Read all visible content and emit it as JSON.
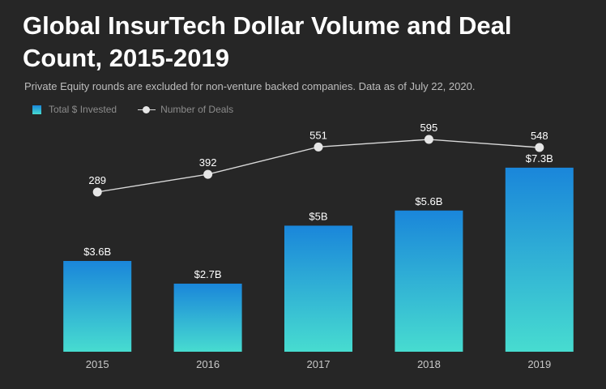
{
  "title": "Global InsurTech Dollar Volume and Deal Count, 2015-2019",
  "subtitle": "Private Equity rounds are excluded for non-venture backed companies. Data as of July 22, 2020.",
  "colors": {
    "background": "#262626",
    "bar_top": "#1a86da",
    "bar_bottom": "#47dcd0",
    "line": "#d9d9d9",
    "marker": "#e6e6e6"
  },
  "chart_data": {
    "type": "bar",
    "categories": [
      "2015",
      "2016",
      "2017",
      "2018",
      "2019"
    ],
    "series": [
      {
        "name": "Total $ Invested",
        "type": "bar",
        "values": [
          3.6,
          2.7,
          5.0,
          5.6,
          7.3
        ],
        "labels": [
          "$3.6B",
          "$2.7B",
          "$5B",
          "$5.6B",
          "$7.3B"
        ]
      },
      {
        "name": "Number of Deals",
        "type": "line",
        "values": [
          289,
          392,
          551,
          595,
          548
        ],
        "labels": [
          "289",
          "392",
          "551",
          "595",
          "548"
        ]
      }
    ],
    "bar_axis_range": [
      0,
      9
    ],
    "line_axis_range": [
      -640,
      680
    ],
    "grid": false,
    "legend_position": "top-left"
  }
}
